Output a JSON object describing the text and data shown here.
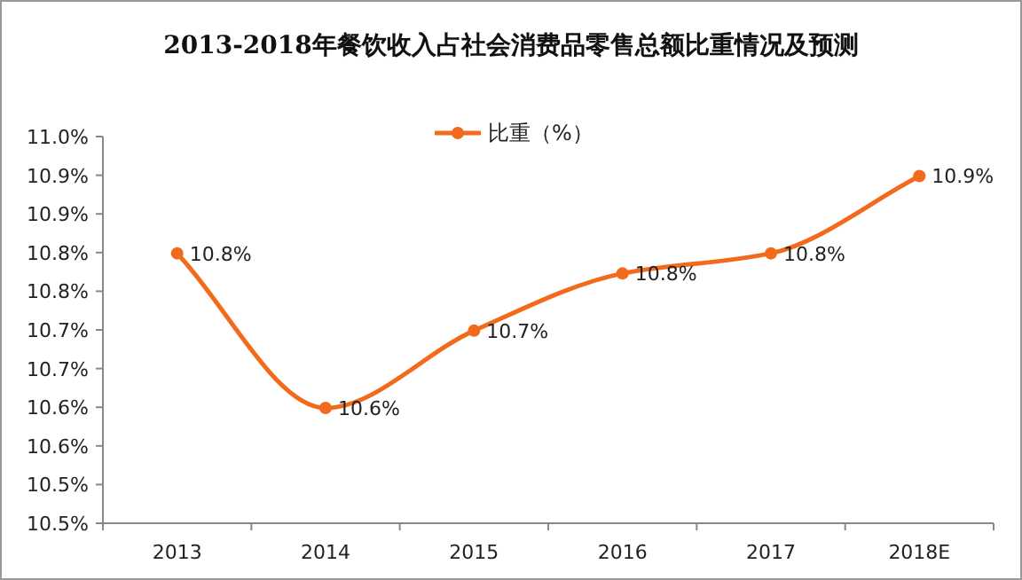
{
  "chart_data": {
    "type": "line",
    "title": "2013-2018年餐饮收入占社会消费品零售总额比重情况及预测",
    "categories": [
      "2013",
      "2014",
      "2015",
      "2016",
      "2017",
      "2018E"
    ],
    "series": [
      {
        "name": "比重（%）",
        "color": "#f26b1d",
        "values": [
          10.849,
          10.649,
          10.749,
          10.823,
          10.849,
          10.949
        ],
        "value_labels": [
          "10.8%",
          "10.6%",
          "10.7%",
          "10.8%",
          "10.8%",
          "10.9%"
        ]
      }
    ],
    "ylim": [
      10.5,
      11.0
    ],
    "yticks": [
      {
        "value": 10.5,
        "label": "10.5%"
      },
      {
        "value": 10.55,
        "label": "10.5%"
      },
      {
        "value": 10.6,
        "label": "10.6%"
      },
      {
        "value": 10.65,
        "label": "10.6%"
      },
      {
        "value": 10.7,
        "label": "10.7%"
      },
      {
        "value": 10.75,
        "label": "10.7%"
      },
      {
        "value": 10.8,
        "label": "10.8%"
      },
      {
        "value": 10.85,
        "label": "10.8%"
      },
      {
        "value": 10.9,
        "label": "10.9%"
      },
      {
        "value": 10.95,
        "label": "10.9%"
      },
      {
        "value": 11.0,
        "label": "11.0%"
      }
    ],
    "legend": "top",
    "marker": "circle",
    "line_style": "solid",
    "grid": false
  }
}
